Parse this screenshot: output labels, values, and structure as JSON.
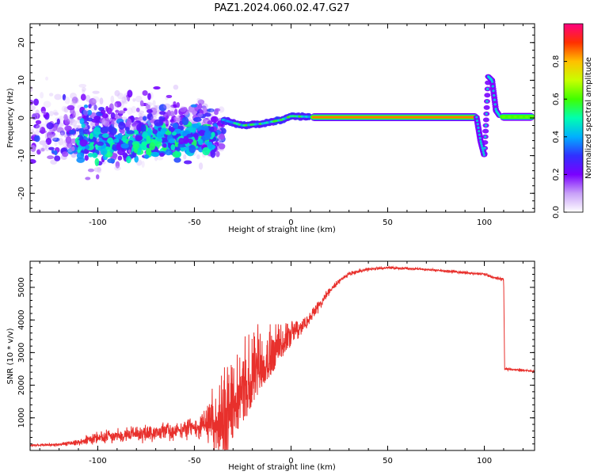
{
  "figure": {
    "title": "PAZ1.2024.060.02.47.G27"
  },
  "chart_data": [
    {
      "type": "heatmap",
      "xlabel": "Height of straight line (km)",
      "ylabel": "Frequency (Hz)",
      "xlim": [
        -135,
        126
      ],
      "ylim": [
        -25,
        25
      ],
      "x_ticks": [
        -100,
        -50,
        0,
        50,
        100
      ],
      "x_tick_labels": [
        "-100",
        "-50",
        "0",
        "50",
        "100"
      ],
      "y_ticks": [
        20,
        10,
        0,
        -10,
        -20
      ],
      "y_tick_labels": [
        "20",
        "10",
        "0",
        "-10",
        "-20"
      ],
      "colorbar": {
        "label": "Normalized spectral amplitude",
        "range": [
          0,
          1
        ],
        "ticks": [
          0,
          0.2,
          0.4,
          0.6,
          0.8
        ],
        "tick_labels": [
          "0.0",
          "0.2",
          "0.4",
          "0.6",
          "0.8"
        ],
        "colormap": [
          "#ffffff",
          "#c8a0f8",
          "#7a00ff",
          "#3030ff",
          "#00b0ff",
          "#00ffb0",
          "#40ff00",
          "#c8ff00",
          "#ffc000",
          "#ff3000",
          "#ff0080"
        ]
      },
      "features": [
        {
          "name": "noise_cloud",
          "x_range": [
            -135,
            -35
          ],
          "y_center": -3,
          "y_spread": 14,
          "amplitude": [
            0.05,
            0.4
          ]
        },
        {
          "name": "dense_cluster",
          "x_range": [
            -110,
            -40
          ],
          "y_center": -6,
          "y_spread": 5,
          "amplitude": [
            0.2,
            0.55
          ]
        },
        {
          "name": "converging_track",
          "points": [
            [
              -35,
              -0.5
            ],
            [
              -25,
              -2
            ],
            [
              -15,
              -1.5
            ],
            [
              -5,
              -0.5
            ],
            [
              0,
              0.5
            ],
            [
              10,
              0.3
            ]
          ],
          "amplitude": 0.5
        },
        {
          "name": "main_signal",
          "x_range": [
            10,
            97
          ],
          "y": 0.2,
          "amplitude": 0.85
        },
        {
          "name": "sharp_excursion",
          "points": [
            [
              96,
              0.2
            ],
            [
              98,
              -6
            ],
            [
              100,
              -10
            ],
            [
              101,
              0
            ],
            [
              102,
              11
            ],
            [
              104,
              10
            ],
            [
              106,
              2
            ],
            [
              108,
              0.5
            ]
          ],
          "amplitude": 0.45
        },
        {
          "name": "late_signal",
          "x_range": [
            108,
            126
          ],
          "y": 0.3,
          "amplitude": 0.6
        }
      ]
    },
    {
      "type": "line",
      "xlabel": "Height of straight line (km)",
      "ylabel": "SNR (10 * v/v)",
      "xlim": [
        -135,
        126
      ],
      "ylim": [
        0,
        5800
      ],
      "x_ticks": [
        -100,
        -50,
        0,
        50,
        100
      ],
      "x_tick_labels": [
        "-100",
        "-50",
        "0",
        "50",
        "100"
      ],
      "y_ticks": [
        1000,
        2000,
        3000,
        4000,
        5000
      ],
      "y_tick_labels": [
        "1000",
        "2000",
        "3000",
        "4000",
        "5000"
      ],
      "color": "#e8302c",
      "series": [
        {
          "x": [
            -135,
            -120,
            -110,
            -100,
            -90,
            -80,
            -70,
            -60,
            -50,
            -45,
            -40,
            -35,
            -30,
            -25,
            -20,
            -15,
            -10,
            -5,
            0,
            5,
            10,
            15,
            20,
            25,
            30,
            35,
            40,
            50,
            60,
            70,
            80,
            90,
            100,
            105,
            110,
            110.5,
            115,
            120,
            126
          ],
          "values": [
            150,
            180,
            250,
            400,
            450,
            500,
            550,
            620,
            700,
            800,
            1000,
            1500,
            2200,
            2600,
            3000,
            3200,
            3300,
            3500,
            3700,
            3900,
            4100,
            4500,
            4900,
            5200,
            5400,
            5500,
            5550,
            5600,
            5580,
            5550,
            5500,
            5450,
            5400,
            5300,
            5250,
            2500,
            2480,
            2460,
            2420
          ],
          "noise_amplitude": [
            60,
            80,
            150,
            300,
            350,
            380,
            420,
            450,
            500,
            700,
            1500,
            2400,
            2500,
            2400,
            2200,
            1700,
            1300,
            900,
            700,
            500,
            350,
            250,
            180,
            140,
            120,
            100,
            90,
            70,
            70,
            70,
            70,
            70,
            70,
            90,
            90,
            70,
            60,
            60,
            60
          ]
        }
      ]
    }
  ]
}
